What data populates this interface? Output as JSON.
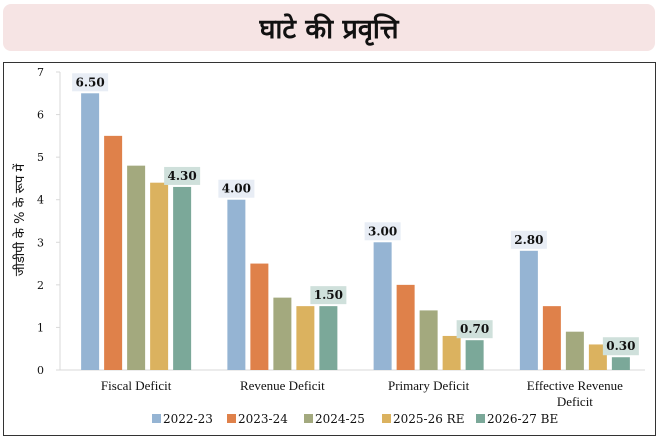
{
  "title": "घाटे की प्रवृत्ति",
  "chart_data": {
    "type": "bar",
    "title": "घाटे की प्रवृत्ति",
    "xlabel": "",
    "ylabel": "जीडीपी के % के रूप में",
    "ylim": [
      0,
      7
    ],
    "yticks": [
      "0",
      "1",
      "2",
      "3",
      "4",
      "5",
      "6",
      "7"
    ],
    "grid": false,
    "legend_position": "bottom",
    "categories": [
      "Fiscal Deficit",
      "Revenue Deficit",
      "Primary Deficit",
      "Effective Revenue Deficit"
    ],
    "category_lines": [
      [
        "Fiscal Deficit"
      ],
      [
        "Revenue Deficit"
      ],
      [
        "Primary Deficit"
      ],
      [
        "Effective Revenue",
        "Deficit"
      ]
    ],
    "series": [
      {
        "name": "2022-23",
        "color": "#95b4d3",
        "values": [
          6.5,
          4.0,
          3.0,
          2.8
        ],
        "labeled": true,
        "label_bg": "#e8edf5"
      },
      {
        "name": "2023-24",
        "color": "#df814a",
        "values": [
          5.5,
          2.5,
          2.0,
          1.5
        ],
        "labeled": false
      },
      {
        "name": "2024-25",
        "color": "#a3a97e",
        "values": [
          4.8,
          1.7,
          1.4,
          0.9
        ],
        "labeled": false
      },
      {
        "name": "2025-26 RE",
        "color": "#dbb25f",
        "values": [
          4.4,
          1.5,
          0.8,
          0.6
        ],
        "labeled": false
      },
      {
        "name": "2026-27 BE",
        "color": "#7ba899",
        "values": [
          4.3,
          1.5,
          0.7,
          0.3
        ],
        "labeled": true,
        "label_bg": "#cfe0db"
      }
    ],
    "data_labels": {
      "2022-23": [
        "6.50",
        "4.00",
        "3.00",
        "2.80"
      ],
      "2026-27 BE": [
        "4.30",
        "1.50",
        "0.70",
        "0.30"
      ]
    }
  }
}
